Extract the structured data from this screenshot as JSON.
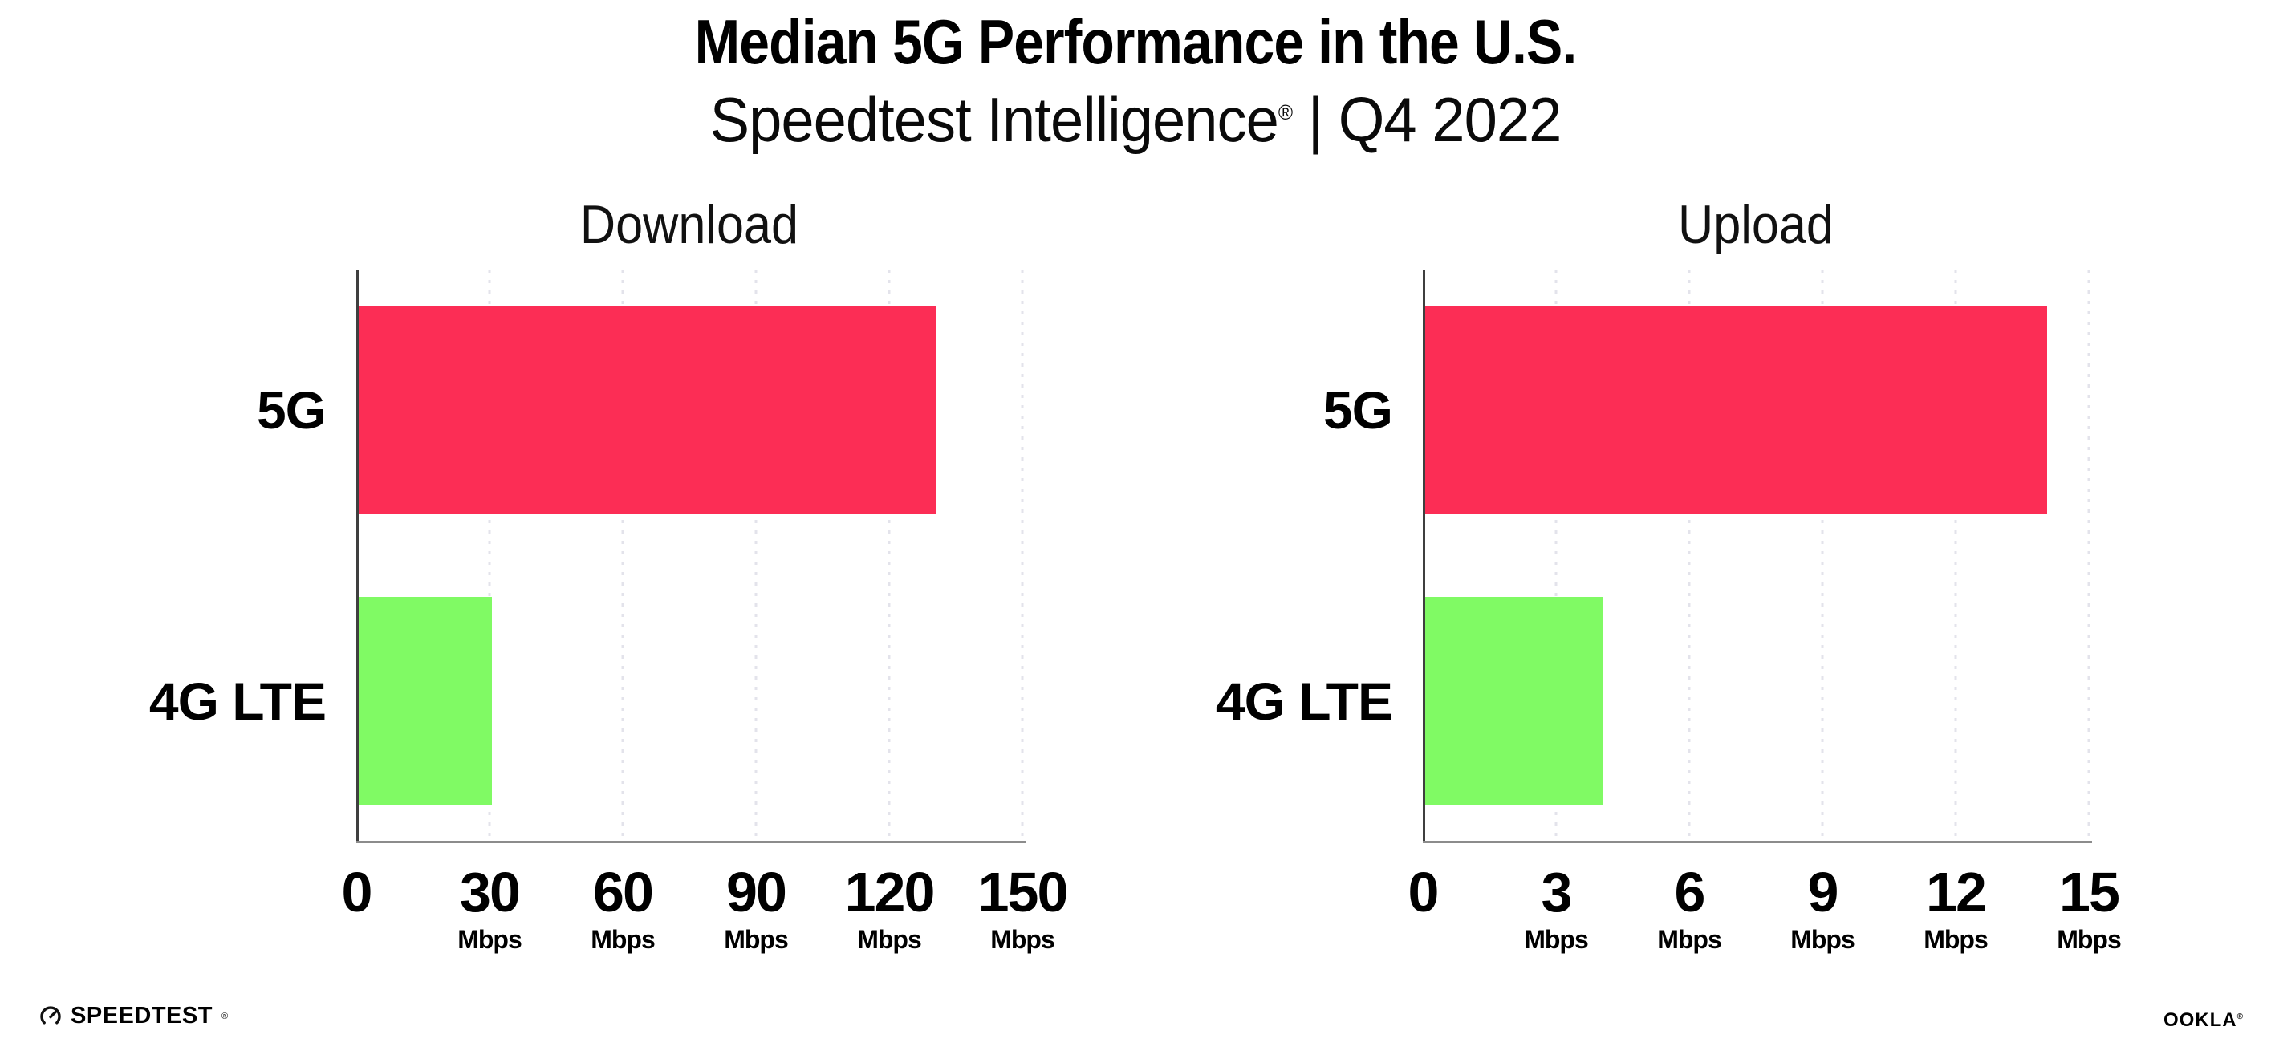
{
  "page": {
    "title": "Median 5G Performance in the U.S.",
    "subtitle": {
      "product": "Speedtest Intelligence",
      "registered_mark": "®",
      "period": " | Q4 2022"
    }
  },
  "chart_data": [
    {
      "type": "bar",
      "orientation": "horizontal",
      "title": "Download",
      "categories": [
        "5G",
        "4G LTE"
      ],
      "values": [
        130,
        30
      ],
      "unit": "Mbps",
      "xlim": [
        0,
        150
      ],
      "ticks": [
        0,
        30,
        60,
        90,
        120,
        150
      ],
      "grid": "dotted-vertical-at-ticks",
      "legend": "none",
      "bar_colors": [
        "#FC2D55",
        "#80FA64"
      ]
    },
    {
      "type": "bar",
      "orientation": "horizontal",
      "title": "Upload",
      "categories": [
        "5G",
        "4G LTE"
      ],
      "values": [
        14,
        4
      ],
      "unit": "Mbps",
      "xlim": [
        0,
        15
      ],
      "ticks": [
        0,
        3,
        6,
        9,
        12,
        15
      ],
      "grid": "dotted-vertical-at-ticks",
      "legend": "none",
      "bar_colors": [
        "#FC2D55",
        "#80FA64"
      ]
    }
  ],
  "colors": {
    "bar_5g": "#FC2D55",
    "bar_4g_lte": "#80FA64",
    "x_axis_line": "#8C8C8C",
    "y_axis_line": "#3F3F3F",
    "gridline": "#E3E3EB",
    "text": "#000000",
    "background": "#FFFFFF"
  },
  "footer": {
    "speedtest_logo_text": "SPEEDTEST",
    "speedtest_registered_mark": "®",
    "ookla_logo_text": "OOKLA",
    "ookla_registered_mark": "®"
  }
}
